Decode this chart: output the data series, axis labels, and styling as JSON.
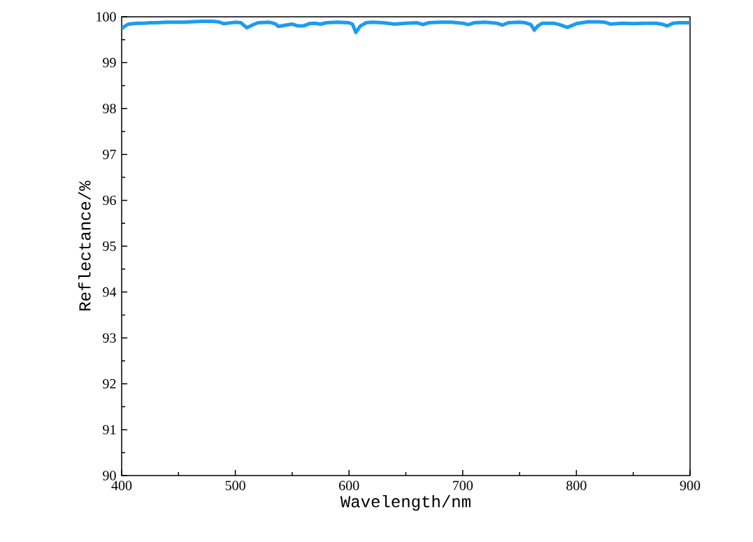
{
  "chart_data": {
    "type": "line",
    "xlabel": "Wavelength/nm",
    "ylabel": "Reflectance/%",
    "xlim": [
      400,
      900
    ],
    "ylim": [
      90,
      100
    ],
    "xticks": [
      400,
      500,
      600,
      700,
      800,
      900
    ],
    "yticks": [
      90,
      91,
      92,
      93,
      94,
      95,
      96,
      97,
      98,
      99,
      100
    ],
    "marker": "none",
    "line_style": "solid",
    "series": [
      {
        "color": "#1b9cf2",
        "x": [
          401,
          403,
          406,
          410,
          415,
          420,
          425,
          430,
          440,
          450,
          455,
          460,
          470,
          480,
          485,
          490,
          500,
          505,
          510,
          515,
          520,
          530,
          535,
          538,
          545,
          550,
          555,
          560,
          565,
          570,
          575,
          580,
          590,
          600,
          603,
          606,
          610,
          615,
          620,
          630,
          640,
          650,
          660,
          665,
          670,
          680,
          690,
          700,
          705,
          710,
          720,
          730,
          735,
          740,
          750,
          755,
          760,
          763,
          766,
          770,
          780,
          785,
          792,
          800,
          810,
          820,
          825,
          830,
          840,
          850,
          860,
          870,
          875,
          880,
          885,
          890,
          900
        ],
        "values": [
          99.76,
          99.8,
          99.84,
          99.85,
          99.86,
          99.86,
          99.87,
          99.87,
          99.88,
          99.88,
          99.88,
          99.89,
          99.9,
          99.9,
          99.89,
          99.85,
          99.88,
          99.87,
          99.76,
          99.82,
          99.87,
          99.88,
          99.85,
          99.79,
          99.82,
          99.84,
          99.8,
          99.8,
          99.85,
          99.86,
          99.84,
          99.87,
          99.88,
          99.87,
          99.84,
          99.66,
          99.8,
          99.87,
          99.88,
          99.87,
          99.84,
          99.86,
          99.87,
          99.83,
          99.87,
          99.88,
          99.88,
          99.86,
          99.83,
          99.87,
          99.88,
          99.86,
          99.82,
          99.87,
          99.88,
          99.87,
          99.83,
          99.71,
          99.8,
          99.86,
          99.86,
          99.83,
          99.77,
          99.85,
          99.89,
          99.89,
          99.88,
          99.84,
          99.86,
          99.85,
          99.86,
          99.86,
          99.84,
          99.8,
          99.86,
          99.87,
          99.87
        ]
      }
    ]
  }
}
